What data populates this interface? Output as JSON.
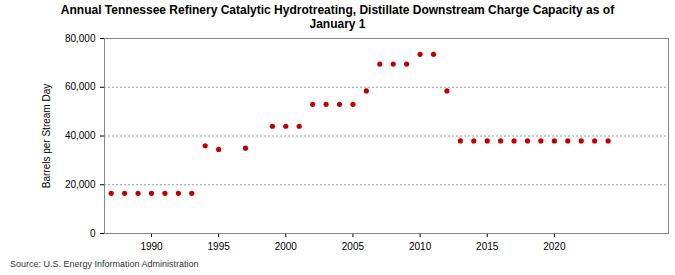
{
  "chart_data": {
    "type": "scatter",
    "title": "Annual Tennessee Refinery Catalytic Hydrotreating, Distillate Downstream Charge Capacity as of January 1",
    "y_label": "Barrels per Stream Day",
    "source": "Source: U.S. Energy Information Administration",
    "x": [
      1987,
      1988,
      1989,
      1990,
      1991,
      1992,
      1993,
      1994,
      1995,
      1997,
      1999,
      2000,
      2001,
      2002,
      2003,
      2004,
      2005,
      2006,
      2007,
      2008,
      2009,
      2010,
      2011,
      2012,
      2013,
      2014,
      2015,
      2016,
      2017,
      2018,
      2019,
      2020,
      2021,
      2022,
      2023,
      2024
    ],
    "values": [
      16500,
      16500,
      16500,
      16500,
      16500,
      16500,
      16500,
      36000,
      34500,
      35000,
      44000,
      44000,
      44000,
      53000,
      53000,
      53000,
      53000,
      58500,
      69500,
      69500,
      69500,
      73500,
      73500,
      58500,
      38000,
      38000,
      38000,
      38000,
      38000,
      38000,
      38000,
      38000,
      38000,
      38000,
      38000,
      38000
    ],
    "color": "#c00000",
    "marker": "circle",
    "xlim": [
      1986.5,
      2028.5
    ],
    "xticks": [
      1990,
      1995,
      2000,
      2005,
      2010,
      2015,
      2020
    ],
    "ylim": [
      0,
      80000
    ],
    "yticks": [
      0,
      {
        "value": 20000,
        "label": "20,000"
      },
      {
        "value": 40000,
        "label": "40,000"
      },
      {
        "value": 60000,
        "label": "60,000"
      },
      {
        "value": 80000,
        "label": "80,000"
      }
    ],
    "grid": true
  }
}
